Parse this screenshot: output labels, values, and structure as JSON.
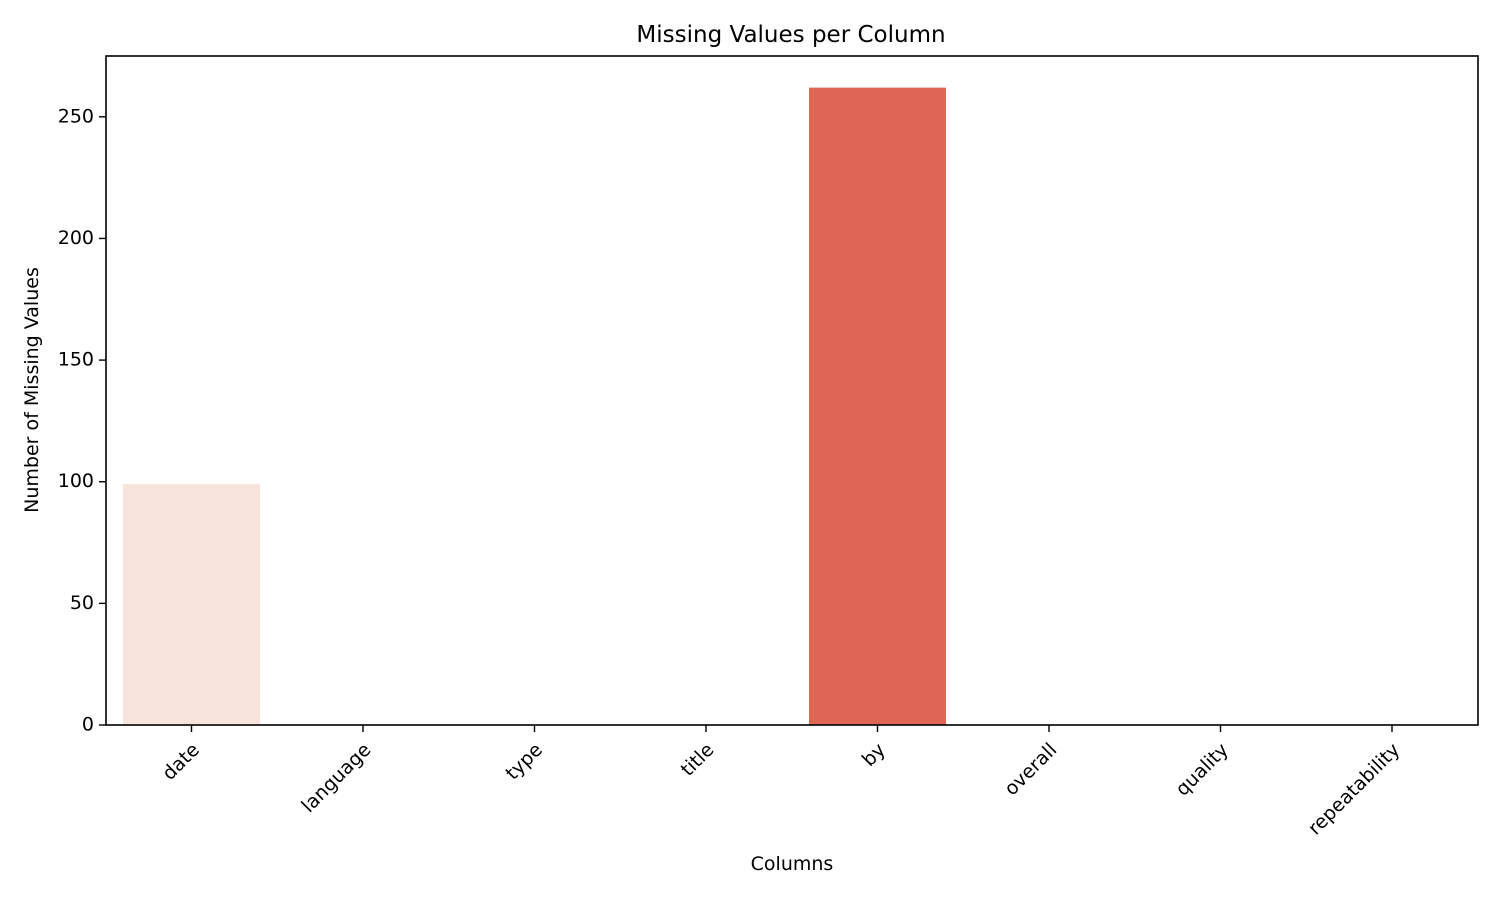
{
  "chart_data": {
    "type": "bar",
    "title": "Missing Values per Column",
    "xlabel": "Columns",
    "ylabel": "Number of Missing Values",
    "categories": [
      "date",
      "language",
      "type",
      "title",
      "by",
      "overall",
      "quality",
      "repeatability"
    ],
    "values": [
      99,
      0,
      0,
      0,
      262,
      0,
      0,
      0
    ],
    "bar_colors": [
      "#f8e3da",
      "#fde6dc",
      "#fde6dc",
      "#fde6dc",
      "#df6655",
      "#fde6dc",
      "#fde6dc",
      "#fde6dc"
    ],
    "ylim": [
      0,
      275
    ],
    "yticks": [
      0,
      50,
      100,
      150,
      200,
      250
    ],
    "grid": false,
    "legend": "none"
  }
}
